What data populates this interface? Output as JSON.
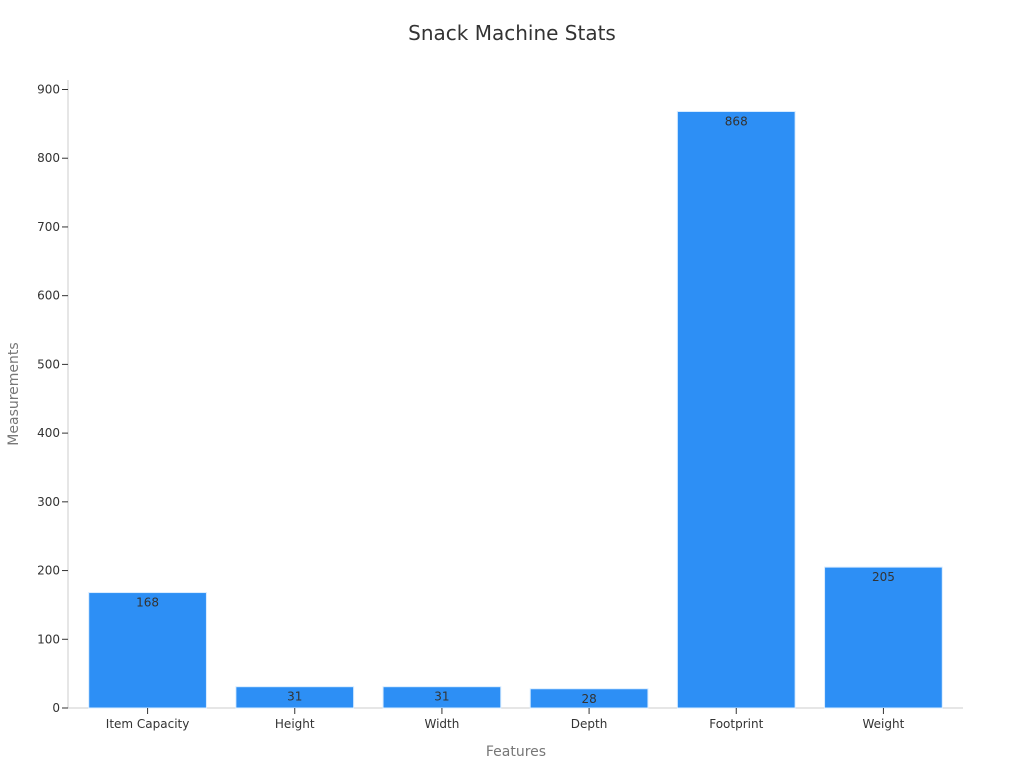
{
  "chart_data": {
    "type": "bar",
    "title": "Snack Machine Stats",
    "xlabel": "Features",
    "ylabel": "Measurements",
    "categories": [
      "Item Capacity",
      "Height",
      "Width",
      "Depth",
      "Footprint",
      "Weight"
    ],
    "values": [
      168,
      31,
      31,
      28,
      868,
      205
    ],
    "data_labels": [
      "168",
      "31",
      "31",
      "28",
      "868",
      "205"
    ],
    "ylim": [
      0,
      900
    ],
    "yticks": [
      0,
      100,
      200,
      300,
      400,
      500,
      600,
      700,
      800,
      900
    ],
    "grid": false,
    "legend": "none",
    "bar_color": "#2d8ff5"
  }
}
